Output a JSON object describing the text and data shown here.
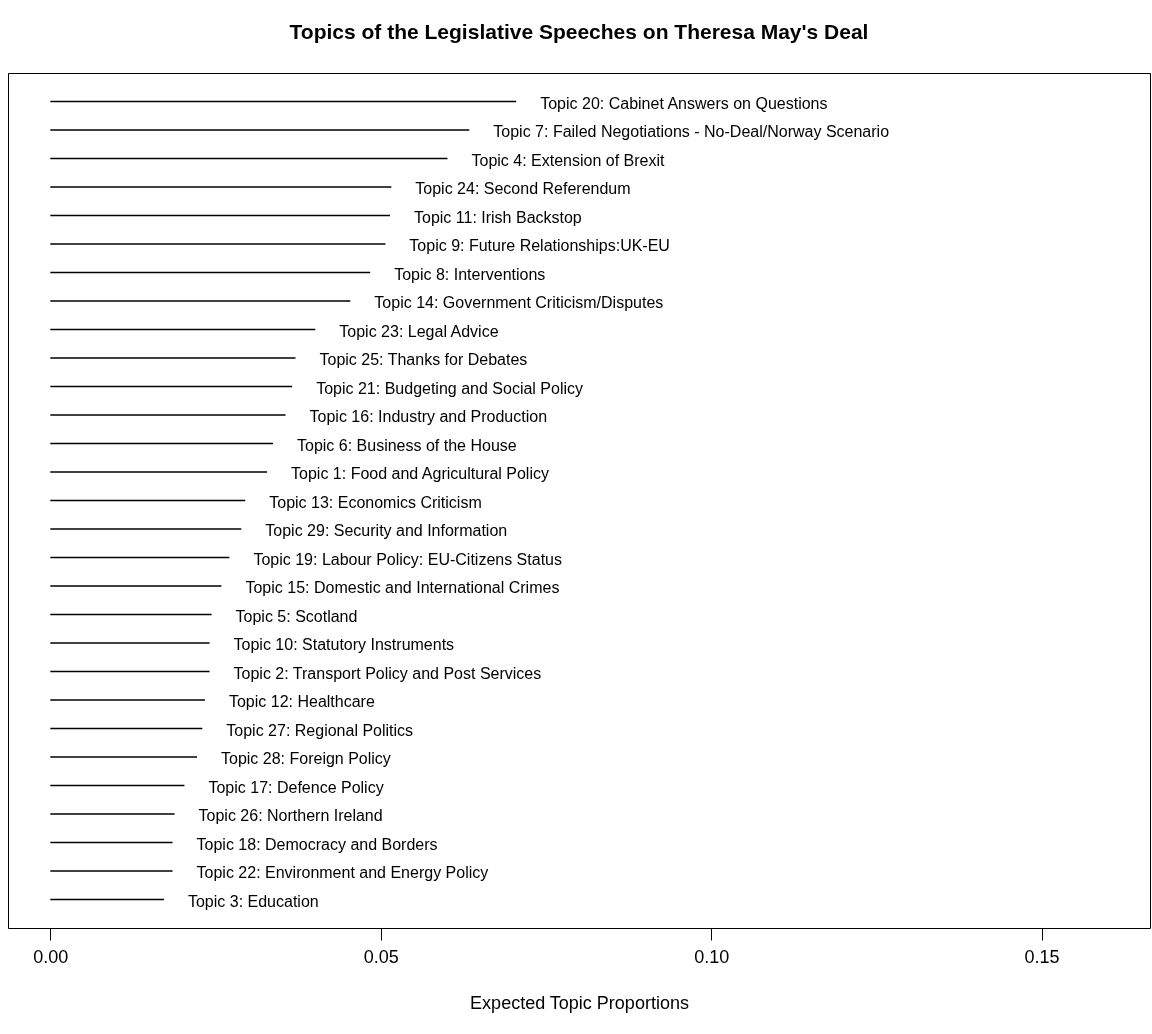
{
  "chart_data": {
    "type": "bar",
    "orientation": "horizontal",
    "title": "Topics of the Legislative Speeches on Theresa May's Deal",
    "xlabel": "Expected Topic Proportions",
    "color": "#000000",
    "categories": [
      "Topic 20: Cabinet Answers on Questions",
      "Topic 7: Failed Negotiations - No-Deal/Norway Scenario",
      "Topic 4: Extension of Brexit",
      "Topic 24: Second Referendum",
      "Topic 11: Irish Backstop",
      "Topic 9: Future Relationships:UK-EU",
      "Topic 8: Interventions",
      "Topic 14: Government Criticism/Disputes",
      "Topic 23: Legal Advice",
      "Topic 25: Thanks for Debates",
      "Topic 21: Budgeting and Social Policy",
      "Topic 16: Industry and Production",
      "Topic 6: Business of the House",
      "Topic 1: Food and Agricultural Policy",
      "Topic 13: Economics Criticism",
      "Topic 29: Security and Information",
      "Topic 19: Labour Policy: EU-Citizens Status",
      "Topic 15: Domestic and International Crimes",
      "Topic 5: Scotland",
      "Topic 10: Statutory Instruments",
      "Topic 2: Transport Policy and Post Services",
      "Topic 12: Healthcare",
      "Topic 27: Regional Politics",
      "Topic 28: Foreign Policy",
      "Topic 17: Defence Policy",
      "Topic 26: Northern Ireland",
      "Topic 18: Democracy and Borders",
      "Topic 22: Environment and Energy Policy",
      "Topic 3: Education"
    ],
    "values": [
      0.0705,
      0.0634,
      0.0601,
      0.0516,
      0.0514,
      0.0507,
      0.0484,
      0.0454,
      0.0401,
      0.0371,
      0.0366,
      0.0356,
      0.0337,
      0.0328,
      0.0295,
      0.0289,
      0.0271,
      0.0259,
      0.0244,
      0.0241,
      0.0241,
      0.0234,
      0.023,
      0.0222,
      0.0203,
      0.0188,
      0.0185,
      0.0185,
      0.0172
    ],
    "xlim": [
      -0.0064,
      0.1664
    ],
    "xticks": [
      {
        "value": 0,
        "label": "0.00"
      },
      {
        "value": 0.05,
        "label": "0.05"
      },
      {
        "value": 0.1,
        "label": "0.10"
      },
      {
        "value": 0.15,
        "label": "0.15"
      }
    ],
    "grid": false
  }
}
